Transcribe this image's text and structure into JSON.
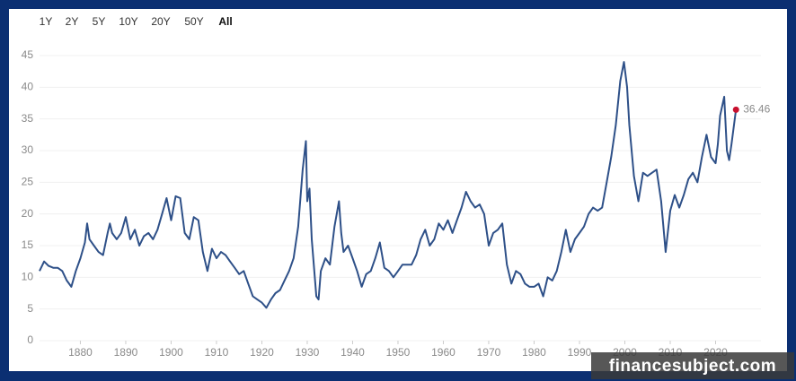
{
  "range_buttons": [
    "1Y",
    "2Y",
    "5Y",
    "10Y",
    "20Y",
    "50Y",
    "All"
  ],
  "active_button": "All",
  "watermark": "financesubject.com",
  "chart_data": {
    "type": "line",
    "color": "#2e5088",
    "end_marker_color": "#c8102e",
    "grid": true,
    "xlim": [
      1871,
      2030
    ],
    "ylim": [
      0,
      45
    ],
    "yticks": [
      0,
      5,
      10,
      15,
      20,
      25,
      30,
      35,
      40,
      45
    ],
    "xticks": [
      1880,
      1890,
      1900,
      1910,
      1920,
      1930,
      1940,
      1950,
      1960,
      1970,
      1980,
      1990,
      2000,
      2010,
      2020
    ],
    "x": [
      1871,
      1872,
      1873,
      1874,
      1875,
      1876,
      1877,
      1878,
      1879,
      1880,
      1881,
      1881.5,
      1882,
      1883,
      1884,
      1885,
      1886,
      1886.5,
      1887,
      1888,
      1889,
      1890,
      1891,
      1892,
      1893,
      1894,
      1895,
      1896,
      1897,
      1898,
      1899,
      1900,
      1901,
      1902,
      1903,
      1904,
      1905,
      1906,
      1907,
      1908,
      1909,
      1910,
      1911,
      1912,
      1913,
      1914,
      1915,
      1916,
      1917,
      1918,
      1919,
      1920,
      1921,
      1922,
      1923,
      1924,
      1925,
      1926,
      1927,
      1928,
      1929,
      1929.7,
      1930,
      1930.5,
      1931,
      1932,
      1932.5,
      1933,
      1934,
      1935,
      1936,
      1937,
      1937.5,
      1938,
      1939,
      1940,
      1941,
      1942,
      1943,
      1944,
      1945,
      1946,
      1947,
      1948,
      1949,
      1950,
      1951,
      1952,
      1953,
      1954,
      1955,
      1956,
      1957,
      1958,
      1959,
      1960,
      1961,
      1962,
      1963,
      1964,
      1965,
      1966,
      1967,
      1968,
      1969,
      1970,
      1971,
      1972,
      1973,
      1974,
      1975,
      1976,
      1977,
      1978,
      1979,
      1980,
      1981,
      1982,
      1983,
      1984,
      1985,
      1986,
      1987,
      1988,
      1989,
      1990,
      1991,
      1992,
      1993,
      1994,
      1995,
      1996,
      1997,
      1998,
      1999,
      1999.8,
      2000.5,
      2001,
      2002,
      2003,
      2004,
      2005,
      2006,
      2007,
      2008,
      2009,
      2010,
      2011,
      2012,
      2013,
      2014,
      2015,
      2016,
      2017,
      2018,
      2019,
      2020,
      2020.5,
      2021,
      2021.9,
      2022.5,
      2023,
      2023.5,
      2024.5
    ],
    "values": [
      11,
      12.5,
      11.8,
      11.5,
      11.5,
      11,
      9.5,
      8.5,
      11,
      13,
      15.5,
      18.5,
      16,
      15,
      14,
      13.5,
      17,
      18.5,
      17,
      16,
      17,
      19.5,
      16,
      17.5,
      15,
      16.5,
      17,
      16,
      17.5,
      20,
      22.5,
      19,
      22.8,
      22.5,
      17,
      16,
      19.5,
      19,
      14,
      11,
      14.5,
      13,
      14,
      13.5,
      12.5,
      11.5,
      10.5,
      11,
      9,
      7,
      6.5,
      6,
      5.2,
      6.5,
      7.5,
      8,
      9.5,
      11,
      13,
      18,
      27,
      31.5,
      22,
      24,
      16,
      7,
      6.5,
      11,
      13,
      12,
      18,
      22,
      17,
      14,
      15,
      13,
      11,
      8.5,
      10.5,
      11,
      13,
      15.5,
      11.5,
      11,
      10,
      11,
      12,
      12,
      12,
      13.5,
      16,
      17.5,
      15,
      16,
      18.5,
      17.5,
      19,
      17,
      19,
      21,
      23.5,
      22,
      21,
      21.5,
      20,
      15,
      17,
      17.5,
      18.5,
      12,
      9,
      11,
      10.5,
      9,
      8.5,
      8.5,
      9,
      7,
      10,
      9.5,
      11,
      14,
      17.5,
      14,
      16,
      17,
      18,
      20,
      21,
      20.5,
      21,
      25,
      29,
      34,
      41,
      44,
      40,
      34,
      26,
      22,
      26.5,
      26,
      26.5,
      27,
      22,
      14,
      20.5,
      23,
      21,
      23,
      25.5,
      26.5,
      25,
      29,
      32.5,
      29,
      28,
      31,
      35.5,
      38.5,
      30,
      28.5,
      31,
      36.46
    ]
  }
}
